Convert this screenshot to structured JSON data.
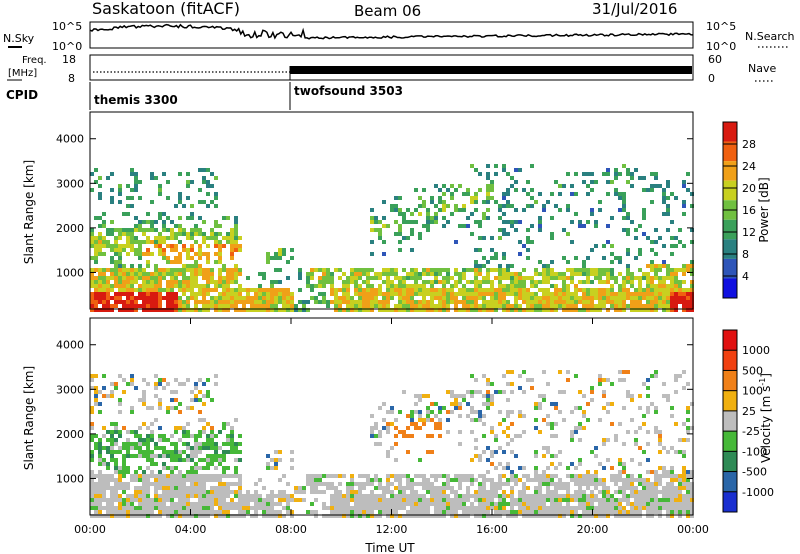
{
  "header": {
    "station": "Saskatoon (fitACF)",
    "beam": "Beam 06",
    "date": "31/Jul/2016"
  },
  "nsky_panel": {
    "left_label": "N.Sky",
    "right_label": "N.Search",
    "left_ticks": [
      "10^5",
      "10^0"
    ],
    "right_ticks": [
      "10^5",
      "10^0"
    ]
  },
  "freq_panel": {
    "left_label_1": "Freq.",
    "left_label_2": "[MHz]",
    "left_ticks": [
      "18",
      "8"
    ],
    "right_label": "Nave",
    "right_ticks": [
      "60",
      "0"
    ]
  },
  "cpid_panel": {
    "label": "CPID",
    "modes": [
      {
        "name": "themis 3300",
        "start_hour": 0
      },
      {
        "name": "twofsound 3503",
        "start_hour": 8
      }
    ]
  },
  "chart_data": [
    {
      "type": "heatmap",
      "panel": "power",
      "ylabel": "Slant Range [km]",
      "ylim": [
        180,
        4600
      ],
      "yticks": [
        "1000",
        "2000",
        "3000",
        "4000"
      ],
      "xlim_hours": [
        0,
        24
      ],
      "colorbar": {
        "label": "Power [dB]",
        "range": [
          0,
          32
        ],
        "tick_labels": [
          "4",
          "8",
          "12",
          "16",
          "20",
          "24",
          "28"
        ],
        "colors": [
          "#1010e0",
          "#2e55b8",
          "#2a8080",
          "#3aa05a",
          "#70c040",
          "#c8d020",
          "#f0a018",
          "#f06010",
          "#d81a10"
        ]
      }
    },
    {
      "type": "heatmap",
      "panel": "velocity",
      "ylabel": "Slant Range [km]",
      "ylim": [
        180,
        4600
      ],
      "yticks": [
        "1000",
        "2000",
        "3000",
        "4000"
      ],
      "xlim_hours": [
        0,
        24
      ],
      "xlabel": "Time UT",
      "xticks": [
        "00:00",
        "04:00",
        "08:00",
        "12:00",
        "16:00",
        "20:00",
        "00:00"
      ],
      "colorbar": {
        "label_main": "Velocity [m s",
        "label_sup": "-1",
        "label_end": "]",
        "tick_labels": [
          "1000",
          "500",
          "100",
          "25",
          "-25",
          "-100",
          "-500",
          "-1000"
        ],
        "colors": [
          "#1a2fd0",
          "#2a66a8",
          "#2e8a55",
          "#46b838",
          "#bdbdbd",
          "#f0b010",
          "#f08018",
          "#f04010",
          "#e01010"
        ]
      }
    }
  ]
}
